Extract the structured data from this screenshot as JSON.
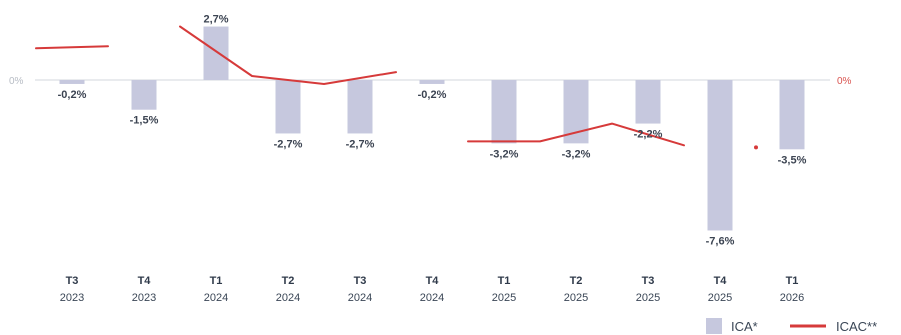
{
  "chart_data": {
    "type": "bar",
    "categories": [
      {
        "quarter": "T3",
        "year": "2023"
      },
      {
        "quarter": "T4",
        "year": "2023"
      },
      {
        "quarter": "T1",
        "year": "2024"
      },
      {
        "quarter": "T2",
        "year": "2024"
      },
      {
        "quarter": "T3",
        "year": "2024"
      },
      {
        "quarter": "T4",
        "year": "2024"
      },
      {
        "quarter": "T1",
        "year": "2025"
      },
      {
        "quarter": "T2",
        "year": "2025"
      },
      {
        "quarter": "T3",
        "year": "2025"
      },
      {
        "quarter": "T4",
        "year": "2025"
      },
      {
        "quarter": "T1",
        "year": "2026"
      }
    ],
    "series": [
      {
        "name": "ICA*",
        "kind": "bar",
        "color": "#c6c8de",
        "values": [
          -0.2,
          -1.5,
          2.7,
          -2.7,
          -2.7,
          -0.2,
          -3.2,
          -3.2,
          -2.2,
          -7.6,
          -3.5
        ],
        "labels": [
          "-0,2%",
          "-1,5%",
          "2,7%",
          "-2,7%",
          "-2,7%",
          "-0,2%",
          "-3,2%",
          "-3,2%",
          "-2,2%",
          "-7,6%",
          "-3,5%"
        ]
      },
      {
        "name": "ICAC**",
        "kind": "line",
        "color": "#d63a3a",
        "segments": [
          [
            {
              "x": -0.5,
              "y": 1.6
            },
            {
              "x": 0.5,
              "y": 1.7
            }
          ],
          [
            {
              "x": 1.5,
              "y": 2.7
            },
            {
              "x": 2.5,
              "y": 0.2
            },
            {
              "x": 3.5,
              "y": -0.2
            },
            {
              "x": 4.5,
              "y": 0.4
            }
          ],
          [
            {
              "x": 5.5,
              "y": -3.1
            },
            {
              "x": 6.5,
              "y": -3.1
            },
            {
              "x": 7.5,
              "y": -2.2
            },
            {
              "x": 8.5,
              "y": -3.3
            }
          ],
          [
            {
              "x": 9.5,
              "y": -3.4
            }
          ]
        ]
      }
    ],
    "y_axis": {
      "left_zero_label": "0%",
      "right_zero_label": "0%",
      "ylim": [
        -7.6,
        2.7
      ]
    },
    "legend": {
      "placement": "bottom-right",
      "items": [
        {
          "label": "ICA*",
          "shape": "square",
          "color": "#c6c8de"
        },
        {
          "label": "ICAC**",
          "shape": "line",
          "color": "#d63a3a"
        }
      ]
    },
    "axis_line_color": "#d3d7dd",
    "grid": false
  }
}
